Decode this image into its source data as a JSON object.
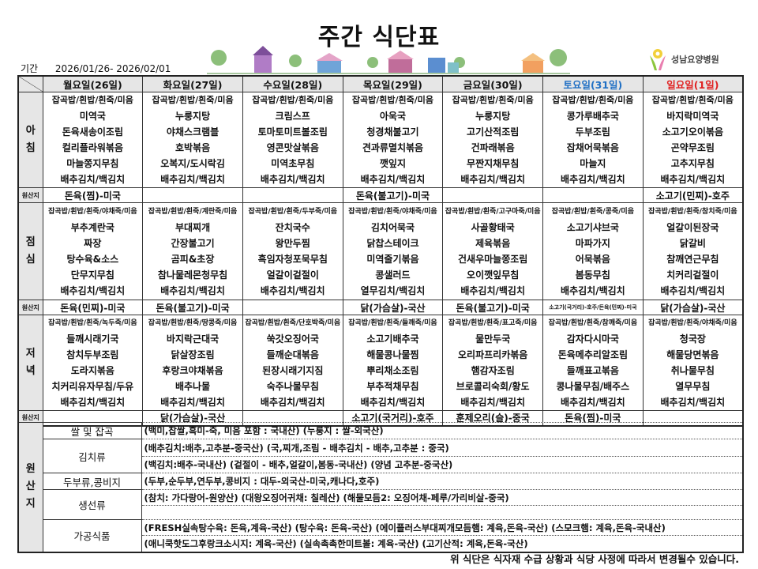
{
  "title": "주간 식단표",
  "period": {
    "label": "기간",
    "value": "2026/01/26- 2026/02/01"
  },
  "logo": {
    "text": "성남요양병원"
  },
  "colors": {
    "saturday": "#1f6fc4",
    "sunday": "#e02020",
    "header_bg": "#e6e6e6"
  },
  "days": [
    {
      "name": "월요일(26일)",
      "color": "#111"
    },
    {
      "name": "화요일(27일)",
      "color": "#111"
    },
    {
      "name": "수요일(28일)",
      "color": "#111"
    },
    {
      "name": "목요일(29일)",
      "color": "#111"
    },
    {
      "name": "금요일(30일)",
      "color": "#111"
    },
    {
      "name": "토요일(31일)",
      "color": "#1f6fc4"
    },
    {
      "name": "일요일(1일)",
      "color": "#e02020"
    }
  ],
  "origin_row_label": "원산지",
  "meals": [
    {
      "label": "아침",
      "items": [
        [
          "잡곡밥/흰밥/흰죽/미음",
          "미역국",
          "돈육새송이조림",
          "컬리플라워볶음",
          "마늘쫑지무침",
          "배추김치/백김치"
        ],
        [
          "잡곡밥/흰밥/흰죽/미음",
          "누룽지탕",
          "야채스크램블",
          "호박볶음",
          "오복지/도시락김",
          "배추김치/백김치"
        ],
        [
          "잡곡밥/흰밥/흰죽/미음",
          "크림스프",
          "토마토미트볼조림",
          "영콘맛살볶음",
          "미역초무침",
          "배추김치/백김치"
        ],
        [
          "잡곡밥/흰밥/흰죽/미음",
          "아욱국",
          "청경채불고기",
          "견과류멸치볶음",
          "깻잎지",
          "배추김치/백김치"
        ],
        [
          "잡곡밥/흰밥/흰죽/미음",
          "누룽지탕",
          "고기산적조림",
          "건파래볶음",
          "무짠지채무침",
          "배추김치/백김치"
        ],
        [
          "잡곡밥/흰밥/흰죽/미음",
          "콩가루배추국",
          "두부조림",
          "잡채어묵볶음",
          "마늘지",
          "배추김치/백김치"
        ],
        [
          "잡곡밥/흰밥/흰죽/미음",
          "바지락미역국",
          "소고기오이볶음",
          "곤약무조림",
          "고추지무침",
          "배추김치/백김치"
        ]
      ],
      "origins": [
        "돈육(찜)-미국",
        "",
        "",
        "돈육(불고기)-미국",
        "",
        "",
        "소고기(민찌)-호주"
      ]
    },
    {
      "label": "점심",
      "items": [
        [
          "잡곡밥/흰밥/흰죽/야채죽/미음",
          "부추계란국",
          "짜장",
          "탕수육&소스",
          "단무지무침",
          "배추김치/백김치"
        ],
        [
          "잡곡밥/흰밥/흰죽/계란죽/미음",
          "부대찌개",
          "간장불고기",
          "곰피&초장",
          "참나물레몬청무침",
          "배추김치/백김치"
        ],
        [
          "잡곡밥/흰밥/흰죽/두부죽/미음",
          "잔치국수",
          "왕만두찜",
          "흑임자청포묵무침",
          "얼갈이겉절이",
          "배추김치/백김치"
        ],
        [
          "잡곡밥/흰밥/흰죽/야채죽/미음",
          "김치어묵국",
          "닭찹스테이크",
          "미역줄기볶음",
          "콩샐러드",
          "열무김치/백김치"
        ],
        [
          "잡곡밥/흰밥/흰죽/고구마죽/미음",
          "사골황태국",
          "제육볶음",
          "건새우마늘쫑조림",
          "오이깻잎무침",
          "배추김치/백김치"
        ],
        [
          "잡곡밥/흰밥/흰죽/콩죽/미음",
          "소고기샤브국",
          "마파가지",
          "어묵볶음",
          "봄동무침",
          "배추김치/백김치"
        ],
        [
          "잡곡밥/흰밥/흰죽/참치죽/미음",
          "얼갈이된장국",
          "닭갈비",
          "참깨연근무침",
          "치커리겉절이",
          "배추김치/백김치"
        ]
      ],
      "origins": [
        "돈육(민찌)-미국",
        "돈육(불고기)-미국",
        "",
        "닭(가슴살)-국산",
        "돈육(불고기)-미국",
        "소고기(국거리)-호주/돈육(민찌)-미국",
        "닭(가슴살)-국산"
      ]
    },
    {
      "label": "저녁",
      "items": [
        [
          "잡곡밥/흰밥/흰죽/녹두죽/미음",
          "들깨시래기국",
          "참치두부조림",
          "도라지볶음",
          "치커리유자무침/두유",
          "배추김치/백김치"
        ],
        [
          "잡곡밥/흰밥/흰죽/땅콩죽/미음",
          "바지락근대국",
          "닭살장조림",
          "후랑크야채볶음",
          "배추나물",
          "배추김치/백김치"
        ],
        [
          "잡곡밥/흰밥/흰죽/단호박죽/미음",
          "쑥갓오징어국",
          "들깨순대볶음",
          "된장시래기지짐",
          "숙주나물무침",
          "배추김치/백김치"
        ],
        [
          "잡곡밥/흰밥/흰죽/들깨죽/미음",
          "소고기배추국",
          "해물콩나물찜",
          "뿌리채소조림",
          "부추적채무침",
          "배추김치/백김치"
        ],
        [
          "잡곡밥/흰밥/흰죽/표고죽/미음",
          "물만두국",
          "오리파프리카볶음",
          "햄감자조림",
          "브로콜리숙회/황도",
          "배추김치/백김치"
        ],
        [
          "잡곡밥/흰밥/흰죽/참깨죽/미음",
          "감자다시마국",
          "돈육메추리알조림",
          "들깨표고볶음",
          "콩나물무침/배주스",
          "배추김치/백김치"
        ],
        [
          "잡곡밥/흰밥/흰죽/야채죽/미음",
          "청국장",
          "해물당면볶음",
          "취나물무침",
          "열무무침",
          "배추김치/백김치"
        ]
      ],
      "origins": [
        "",
        "닭(가슴살)-국산",
        "",
        "소고기(국거리)-호주",
        "훈제오리(슬)-중국",
        "돈육(찜)-미국",
        ""
      ]
    }
  ],
  "origin_section": {
    "label": "원산지",
    "rows": [
      {
        "category": "쌀 및 잡곡",
        "lines": [
          "(백미,찹쌀,흑미-죽, 미음 포함 : 국내산) (누룽지 : 쌀-외국산)"
        ]
      },
      {
        "category": "김치류",
        "lines": [
          "(배추김치:배추,고추분-중국산) (국,찌개,조림 - 배추김치 - 배추,고추분 : 중국)",
          "(백김치:배추-국내산) (겉절이 - 배추,얼갈이,봄동-국내산) (양념 고추분-중국산)"
        ]
      },
      {
        "category": "두부류,콩비지",
        "lines": [
          "(두부,순두부,연두부,콩비지 : 대두-외국산-미국,캐나다,호주)"
        ]
      },
      {
        "category": "생선류",
        "lines": [
          "(참치: 가다랑어-원양산) (대왕오징어귀채: 칠레산) (해물모듬2: 오징어채-페루/가리비살-중국)",
          ""
        ]
      },
      {
        "category": "가공식품",
        "lines": [
          "(FRESH실속탕수육: 돈육,계육-국산) (탕수육: 돈육-국산) (에이플러스부대찌개모듬햄: 계육,돈육-국산) (스모크햄: 계육,돈육-국내산)",
          "(애니쿡핫도그후랑크소시지: 계육-국산) (실속촉촉한미트볼: 계육-국산) (고기산적: 계육,돈육-국산)"
        ]
      }
    ]
  },
  "footer": "위 식단은 식자재 수급 상황과 식당 사정에 따라서  변경될수 있습니다."
}
